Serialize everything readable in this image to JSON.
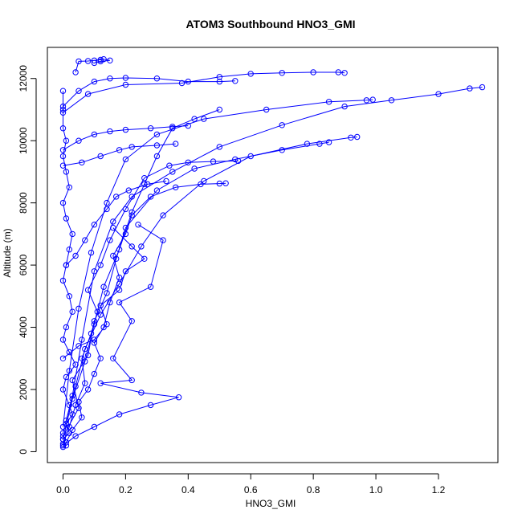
{
  "chart_data": {
    "type": "scatter",
    "title": "ATOM3 Southbound HNO3_GMI",
    "xlabel": "HNO3_GMI",
    "ylabel": "Altitude (m)",
    "xlim": [
      -0.05,
      1.39
    ],
    "ylim": [
      -350,
      13000
    ],
    "xticks": [
      0.0,
      0.2,
      0.4,
      0.6,
      0.8,
      1.0,
      1.2
    ],
    "xtick_labels": [
      "0.0",
      "0.2",
      "0.4",
      "0.6",
      "0.8",
      "1.0",
      "1.2"
    ],
    "yticks": [
      0,
      2000,
      4000,
      6000,
      8000,
      10000,
      12000
    ],
    "ytick_labels": [
      "0",
      "2000",
      "4000",
      "6000",
      "8000",
      "10000",
      "12000"
    ],
    "grid": false,
    "marker": "open-circle",
    "line_style": "solid",
    "series": [
      {
        "color": "#0000ff",
        "values": [
          [
            0.0,
            150
          ],
          [
            0.01,
            200
          ],
          [
            0.0,
            400
          ],
          [
            0.02,
            600
          ],
          [
            0.01,
            900
          ],
          [
            0.03,
            1200
          ],
          [
            0.02,
            1500
          ],
          [
            0.0,
            2000
          ],
          [
            0.01,
            2400
          ],
          [
            0.04,
            2800
          ],
          [
            0.02,
            3200
          ],
          [
            0.0,
            3600
          ],
          [
            0.01,
            4000
          ],
          [
            0.03,
            4500
          ],
          [
            0.02,
            5000
          ],
          [
            0.0,
            5500
          ],
          [
            0.01,
            6000
          ],
          [
            0.02,
            6500
          ],
          [
            0.03,
            7000
          ],
          [
            0.01,
            7500
          ],
          [
            0.0,
            8000
          ],
          [
            0.02,
            8500
          ],
          [
            0.01,
            9000
          ],
          [
            0.0,
            9500
          ],
          [
            0.01,
            10000
          ],
          [
            0.0,
            10400
          ],
          [
            0.0,
            11000
          ],
          [
            0.0,
            11600
          ]
        ]
      },
      {
        "color": "#0000ff",
        "values": [
          [
            0.01,
            300
          ],
          [
            0.03,
            700
          ],
          [
            0.06,
            1100
          ],
          [
            0.05,
            1600
          ],
          [
            0.08,
            2000
          ],
          [
            0.1,
            2500
          ],
          [
            0.12,
            3000
          ],
          [
            0.1,
            3500
          ],
          [
            0.13,
            4000
          ],
          [
            0.15,
            4800
          ],
          [
            0.18,
            5600
          ],
          [
            0.16,
            6300
          ],
          [
            0.2,
            7000
          ],
          [
            0.22,
            7600
          ],
          [
            0.28,
            8200
          ],
          [
            0.36,
            8500
          ],
          [
            0.44,
            8600
          ],
          [
            0.5,
            8620
          ],
          [
            0.52,
            8630
          ]
        ]
      },
      {
        "color": "#0000ff",
        "values": [
          [
            0.0,
            250
          ],
          [
            0.02,
            800
          ],
          [
            0.04,
            1500
          ],
          [
            0.07,
            2200
          ],
          [
            0.06,
            3000
          ],
          [
            0.09,
            3800
          ],
          [
            0.11,
            4500
          ],
          [
            0.08,
            5200
          ],
          [
            0.12,
            6000
          ],
          [
            0.15,
            6800
          ],
          [
            0.2,
            7800
          ],
          [
            0.26,
            8800
          ],
          [
            0.34,
            9200
          ],
          [
            0.4,
            9300
          ],
          [
            0.48,
            9330
          ],
          [
            0.56,
            9350
          ]
        ]
      },
      {
        "color": "#0000ff",
        "values": [
          [
            0.0,
            500
          ],
          [
            0.05,
            1400
          ],
          [
            0.03,
            2300
          ],
          [
            0.08,
            3100
          ],
          [
            0.1,
            4200
          ],
          [
            0.14,
            5100
          ],
          [
            0.17,
            6200
          ],
          [
            0.2,
            7200
          ],
          [
            0.3,
            8400
          ],
          [
            0.42,
            9100
          ],
          [
            0.55,
            9400
          ],
          [
            0.7,
            9700
          ],
          [
            0.82,
            9900
          ],
          [
            0.85,
            9950
          ]
        ]
      },
      {
        "color": "#0000ff",
        "values": [
          [
            0.01,
            1000
          ],
          [
            0.04,
            2100
          ],
          [
            0.07,
            3300
          ],
          [
            0.12,
            4400
          ],
          [
            0.18,
            5400
          ],
          [
            0.25,
            6600
          ],
          [
            0.32,
            7600
          ],
          [
            0.45,
            8700
          ],
          [
            0.6,
            9500
          ],
          [
            0.78,
            9900
          ],
          [
            0.92,
            10100
          ],
          [
            0.94,
            10120
          ]
        ]
      },
      {
        "color": "#0000ff",
        "values": [
          [
            0.0,
            600
          ],
          [
            0.03,
            1800
          ],
          [
            0.06,
            3600
          ],
          [
            0.1,
            5800
          ],
          [
            0.16,
            7400
          ],
          [
            0.22,
            8200
          ],
          [
            0.35,
            9000
          ],
          [
            0.5,
            9800
          ],
          [
            0.7,
            10500
          ],
          [
            0.9,
            11100
          ],
          [
            1.05,
            11300
          ],
          [
            1.2,
            11500
          ],
          [
            1.3,
            11680
          ],
          [
            1.34,
            11720
          ]
        ]
      },
      {
        "color": "#0000ff",
        "values": [
          [
            0.0,
            800
          ],
          [
            0.02,
            2600
          ],
          [
            0.05,
            4600
          ],
          [
            0.09,
            6400
          ],
          [
            0.14,
            8000
          ],
          [
            0.2,
            9400
          ],
          [
            0.3,
            10200
          ],
          [
            0.45,
            10700
          ],
          [
            0.65,
            11000
          ],
          [
            0.85,
            11250
          ],
          [
            0.97,
            11300
          ],
          [
            0.99,
            11320
          ]
        ]
      },
      {
        "color": "#0000ff",
        "values": [
          [
            0.0,
            400
          ],
          [
            0.03,
            1700
          ],
          [
            0.07,
            2900
          ],
          [
            0.1,
            4100
          ],
          [
            0.13,
            5300
          ],
          [
            0.18,
            6500
          ],
          [
            0.22,
            7700
          ],
          [
            0.26,
            8600
          ],
          [
            0.3,
            9500
          ],
          [
            0.35,
            10400
          ],
          [
            0.42,
            10700
          ],
          [
            0.5,
            11000
          ]
        ]
      },
      {
        "color": "#0000ff",
        "values": [
          [
            0.0,
            11100
          ],
          [
            0.05,
            11600
          ],
          [
            0.1,
            11900
          ],
          [
            0.15,
            12000
          ],
          [
            0.2,
            12020
          ],
          [
            0.3,
            12000
          ],
          [
            0.4,
            11900
          ],
          [
            0.5,
            11900
          ],
          [
            0.55,
            11920
          ]
        ]
      },
      {
        "color": "#0000ff",
        "values": [
          [
            0.0,
            10900
          ],
          [
            0.08,
            11500
          ],
          [
            0.2,
            11800
          ],
          [
            0.38,
            11850
          ],
          [
            0.5,
            12050
          ],
          [
            0.6,
            12150
          ],
          [
            0.7,
            12180
          ],
          [
            0.8,
            12200
          ],
          [
            0.88,
            12200
          ],
          [
            0.9,
            12180
          ]
        ]
      },
      {
        "color": "#0000ff",
        "values": [
          [
            0.04,
            12200
          ],
          [
            0.05,
            12550
          ],
          [
            0.08,
            12560
          ],
          [
            0.1,
            12580
          ],
          [
            0.12,
            12600
          ],
          [
            0.13,
            12620
          ],
          [
            0.15,
            12580
          ],
          [
            0.12,
            12550
          ],
          [
            0.1,
            12500
          ]
        ]
      },
      {
        "color": "#0000ff",
        "values": [
          [
            0.0,
            200
          ],
          [
            0.04,
            500
          ],
          [
            0.1,
            800
          ],
          [
            0.18,
            1200
          ],
          [
            0.28,
            1500
          ],
          [
            0.37,
            1750
          ],
          [
            0.25,
            1900
          ],
          [
            0.12,
            2200
          ],
          [
            0.22,
            2300
          ],
          [
            0.16,
            3000
          ],
          [
            0.22,
            4200
          ],
          [
            0.18,
            4800
          ],
          [
            0.28,
            5300
          ],
          [
            0.32,
            6800
          ],
          [
            0.24,
            7300
          ]
        ]
      },
      {
        "color": "#0000ff",
        "values": [
          [
            0.0,
            3000
          ],
          [
            0.05,
            3400
          ],
          [
            0.1,
            3600
          ],
          [
            0.14,
            4100
          ],
          [
            0.12,
            4700
          ],
          [
            0.18,
            5200
          ],
          [
            0.2,
            5800
          ],
          [
            0.26,
            6200
          ],
          [
            0.22,
            6600
          ],
          [
            0.16,
            7200
          ]
        ]
      },
      {
        "color": "#0000ff",
        "values": [
          [
            0.0,
            9700
          ],
          [
            0.05,
            10000
          ],
          [
            0.1,
            10200
          ],
          [
            0.15,
            10300
          ],
          [
            0.2,
            10350
          ],
          [
            0.28,
            10400
          ],
          [
            0.35,
            10450
          ],
          [
            0.4,
            10480
          ]
        ]
      },
      {
        "color": "#0000ff",
        "values": [
          [
            0.0,
            9200
          ],
          [
            0.06,
            9300
          ],
          [
            0.12,
            9500
          ],
          [
            0.18,
            9700
          ],
          [
            0.22,
            9800
          ],
          [
            0.3,
            9850
          ],
          [
            0.36,
            9900
          ]
        ]
      },
      {
        "color": "#0000ff",
        "values": [
          [
            0.01,
            6000
          ],
          [
            0.04,
            6300
          ],
          [
            0.07,
            6800
          ],
          [
            0.1,
            7300
          ],
          [
            0.14,
            7800
          ],
          [
            0.17,
            8200
          ],
          [
            0.21,
            8400
          ],
          [
            0.27,
            8600
          ],
          [
            0.33,
            8700
          ]
        ]
      }
    ]
  }
}
